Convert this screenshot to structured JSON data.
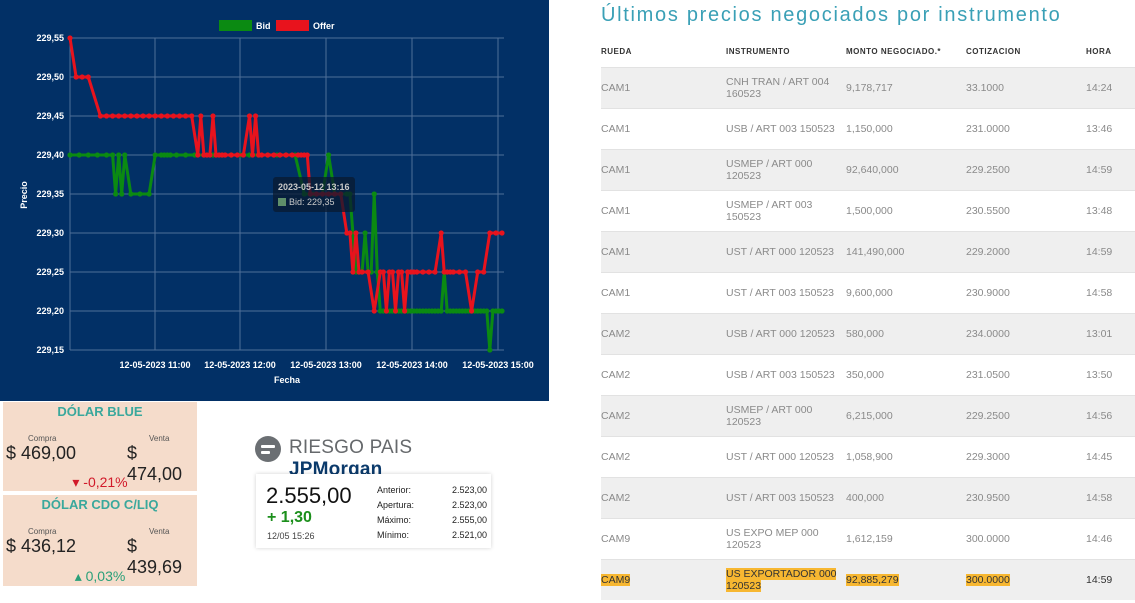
{
  "chart_data": {
    "type": "line",
    "xlabel": "Fecha",
    "ylabel": "Precio",
    "x_ticks": [
      "12-05-2023 11:00",
      "12-05-2023 12:00",
      "12-05-2023 13:00",
      "12-05-2023 14:00",
      "12-05-2023 15:00"
    ],
    "y_ticks": [
      "229,55",
      "229,50",
      "229,45",
      "229,40",
      "229,35",
      "229,30",
      "229,25",
      "229,20",
      "229,15"
    ],
    "xlim": [
      "12-05-2023 10:20",
      "12-05-2023 15:05"
    ],
    "ylim": [
      229.14,
      229.56
    ],
    "grid": true,
    "legend_position": "top-center",
    "series": [
      {
        "name": "Bid",
        "color": "#0b8a12",
        "x": [
          0,
          6,
          12,
          18,
          24,
          28,
          30,
          32,
          34,
          36,
          40,
          46,
          52,
          56,
          60,
          62,
          64,
          66,
          70,
          76,
          82,
          88,
          94,
          100,
          106,
          112,
          118,
          124,
          130,
          136,
          142,
          148,
          154,
          160,
          166,
          170,
          174,
          178,
          182,
          184,
          186,
          188,
          190,
          192,
          194,
          196,
          198,
          200,
          202,
          204,
          206,
          208,
          210,
          212,
          214,
          216,
          218,
          220,
          222,
          224,
          226,
          228,
          230,
          232,
          234,
          236,
          238,
          240,
          242,
          244,
          246,
          248,
          250,
          252,
          254,
          256,
          258,
          260,
          262,
          264,
          266,
          268,
          270,
          272,
          274,
          276,
          278,
          280,
          282,
          284
        ],
        "values": [
          229.4,
          229.4,
          229.4,
          229.4,
          229.4,
          229.4,
          229.35,
          229.4,
          229.35,
          229.4,
          229.35,
          229.35,
          229.35,
          229.4,
          229.4,
          229.4,
          229.4,
          229.4,
          229.4,
          229.4,
          229.4,
          229.4,
          229.4,
          229.4,
          229.4,
          229.4,
          229.4,
          229.4,
          229.4,
          229.4,
          229.4,
          229.4,
          229.35,
          229.35,
          229.35,
          229.4,
          229.35,
          229.35,
          229.35,
          229.35,
          229.3,
          229.25,
          229.25,
          229.25,
          229.3,
          229.25,
          229.25,
          229.35,
          229.25,
          229.2,
          229.2,
          229.2,
          229.2,
          229.2,
          229.2,
          229.2,
          229.2,
          229.2,
          229.2,
          229.2,
          229.2,
          229.2,
          229.2,
          229.2,
          229.2,
          229.2,
          229.2,
          229.2,
          229.2,
          229.2,
          229.25,
          229.2,
          229.2,
          229.2,
          229.2,
          229.2,
          229.2,
          229.2,
          229.2,
          229.2,
          229.2,
          229.2,
          229.2,
          229.2,
          229.2,
          229.15,
          229.2,
          229.2,
          229.2,
          229.2
        ]
      },
      {
        "name": "Offer",
        "color": "#e8131d",
        "x": [
          0,
          4,
          8,
          12,
          20,
          24,
          28,
          32,
          36,
          40,
          44,
          48,
          52,
          56,
          60,
          64,
          68,
          72,
          76,
          80,
          84,
          86,
          88,
          90,
          92,
          94,
          96,
          98,
          100,
          102,
          106,
          110,
          114,
          118,
          120,
          122,
          124,
          126,
          130,
          134,
          138,
          142,
          146,
          150,
          152,
          154,
          156,
          158,
          162,
          166,
          170,
          174,
          178,
          182,
          184,
          186,
          188,
          190,
          192,
          196,
          200,
          204,
          206,
          208,
          210,
          212,
          214,
          216,
          218,
          220,
          222,
          224,
          226,
          228,
          232,
          236,
          240,
          244,
          246,
          248,
          250,
          252,
          256,
          260,
          264,
          268,
          272,
          276,
          280,
          284
        ],
        "values": [
          229.55,
          229.5,
          229.5,
          229.5,
          229.45,
          229.45,
          229.45,
          229.45,
          229.45,
          229.45,
          229.45,
          229.45,
          229.45,
          229.45,
          229.45,
          229.45,
          229.45,
          229.45,
          229.45,
          229.45,
          229.4,
          229.45,
          229.4,
          229.4,
          229.4,
          229.45,
          229.4,
          229.4,
          229.4,
          229.4,
          229.4,
          229.4,
          229.4,
          229.45,
          229.4,
          229.45,
          229.4,
          229.4,
          229.4,
          229.4,
          229.4,
          229.4,
          229.4,
          229.4,
          229.4,
          229.4,
          229.4,
          229.35,
          229.35,
          229.35,
          229.35,
          229.35,
          229.35,
          229.3,
          229.3,
          229.25,
          229.3,
          229.25,
          229.25,
          229.25,
          229.2,
          229.25,
          229.25,
          229.2,
          229.25,
          229.25,
          229.2,
          229.25,
          229.25,
          229.2,
          229.25,
          229.25,
          229.25,
          229.25,
          229.25,
          229.25,
          229.25,
          229.3,
          229.25,
          229.25,
          229.25,
          229.25,
          229.25,
          229.25,
          229.2,
          229.25,
          229.25,
          229.3,
          229.3,
          229.3
        ]
      }
    ],
    "tooltip": {
      "title": "2023-05-12 13:16",
      "line": "Bid: 229,35"
    }
  },
  "dolar_blue": {
    "title": "DÓLAR BLUE",
    "compra_label": "Compra",
    "venta_label": "Venta",
    "compra": "$ 469,00",
    "venta": "$ 474,00",
    "variation": "▾ -0,21%"
  },
  "dolar_ccl": {
    "title": "DÓLAR CDO C/LIQ",
    "compra_label": "Compra",
    "venta_label": "Venta",
    "compra": "$ 436,12",
    "venta": "$ 439,69",
    "variation": "▴ 0,03%"
  },
  "riesgo": {
    "title": "RIESGO PAIS",
    "brand": "JPMorgan",
    "value": "2.555,00",
    "change": "+ 1,30",
    "time": "12/05 15:26",
    "stats": [
      {
        "label": "Anterior:",
        "value": "2.523,00"
      },
      {
        "label": "Apertura:",
        "value": "2.523,00"
      },
      {
        "label": "Máximo:",
        "value": "2.555,00"
      },
      {
        "label": "Mínimo:",
        "value": "2.521,00"
      }
    ]
  },
  "table": {
    "title": "Últimos precios negociados por instrumento",
    "headers": [
      "RUEDA",
      "INSTRUMENTO",
      "MONTO NEGOCIADO.*",
      "COTIZACION",
      "HORA"
    ],
    "rows": [
      [
        "CAM1",
        "CNH TRAN / ART 004 160523",
        "9,178,717",
        "33.1000",
        "14:24"
      ],
      [
        "CAM1",
        "USB / ART 003 150523",
        "1,150,000",
        "231.0000",
        "13:46"
      ],
      [
        "CAM1",
        "USMEP / ART 000 120523",
        "92,640,000",
        "229.2500",
        "14:59"
      ],
      [
        "CAM1",
        "USMEP / ART 003 150523",
        "1,500,000",
        "230.5500",
        "13:48"
      ],
      [
        "CAM1",
        "UST / ART 000 120523",
        "141,490,000",
        "229.2000",
        "14:59"
      ],
      [
        "CAM1",
        "UST / ART 003 150523",
        "9,600,000",
        "230.9000",
        "14:58"
      ],
      [
        "CAM2",
        "USB / ART 000 120523",
        "580,000",
        "234.0000",
        "13:01"
      ],
      [
        "CAM2",
        "USB / ART 003 150523",
        "350,000",
        "231.0500",
        "13:50"
      ],
      [
        "CAM2",
        "USMEP / ART 000 120523",
        "6,215,000",
        "229.2500",
        "14:56"
      ],
      [
        "CAM2",
        "UST / ART 000 120523",
        "1,058,900",
        "229.3000",
        "14:45"
      ],
      [
        "CAM2",
        "UST / ART 003 150523",
        "400,000",
        "230.9500",
        "14:58"
      ],
      [
        "CAM9",
        "US EXPO MEP 000 120523",
        "1,612,159",
        "300.0000",
        "14:46"
      ],
      [
        "CAM9",
        "US EXPORTADOR 000 120523",
        "92,885,279",
        "300.0000",
        "14:59"
      ]
    ]
  }
}
